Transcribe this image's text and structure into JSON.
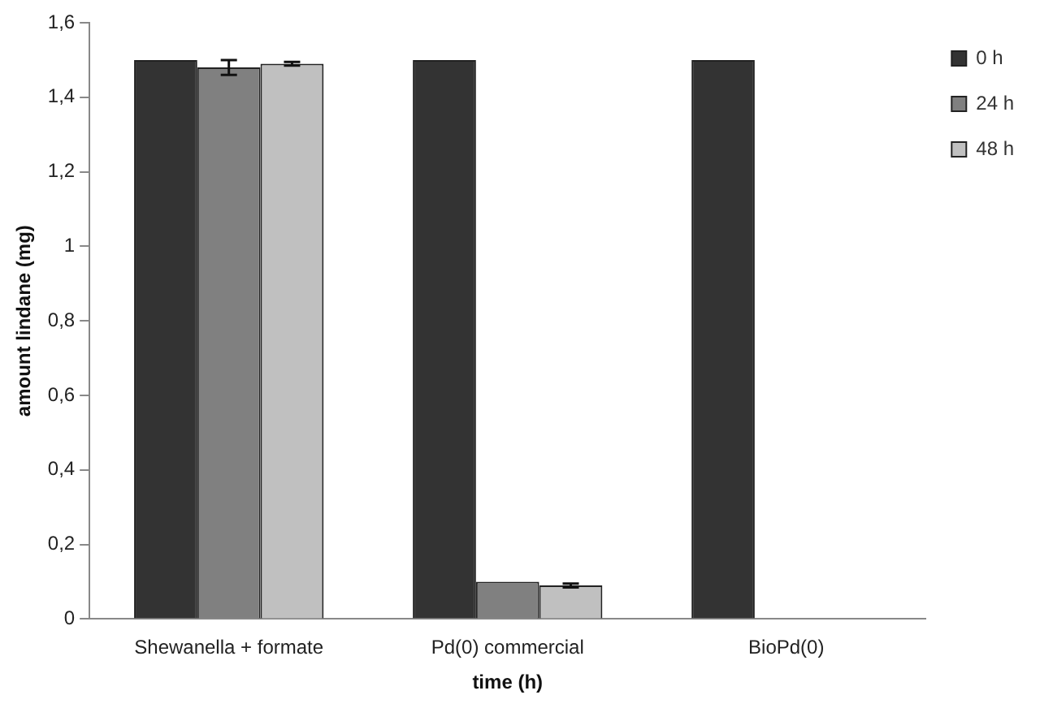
{
  "chart_data": {
    "type": "bar",
    "xlabel": "time (h)",
    "ylabel": "amount lindane (mg)",
    "categories": [
      "Shewanella + formate",
      "Pd(0) commercial",
      "BioPd(0)"
    ],
    "series": [
      {
        "name": "0 h",
        "color": "#333333",
        "values": [
          1.5,
          1.5,
          1.5
        ]
      },
      {
        "name": "24 h",
        "color": "#808080",
        "values": [
          1.48,
          0.1,
          0
        ],
        "errors": [
          0.02,
          null,
          null
        ]
      },
      {
        "name": "48 h",
        "color": "#c0c0c0",
        "values": [
          1.49,
          0.09,
          0
        ],
        "errors": [
          0.005,
          0.005,
          null
        ]
      }
    ],
    "ylim": [
      0,
      1.6
    ],
    "yticks": [
      0,
      {
        "value": 0.2,
        "label": "0,2"
      },
      {
        "value": 0.4,
        "label": "0,4"
      },
      {
        "value": 0.6,
        "label": "0,6"
      },
      {
        "value": 0.8,
        "label": "0,8"
      },
      1,
      {
        "value": 1.2,
        "label": "1,2"
      },
      {
        "value": 1.4,
        "label": "1,4"
      },
      {
        "value": 1.6,
        "label": "1,6"
      }
    ],
    "grid": false,
    "legend": "top right"
  }
}
